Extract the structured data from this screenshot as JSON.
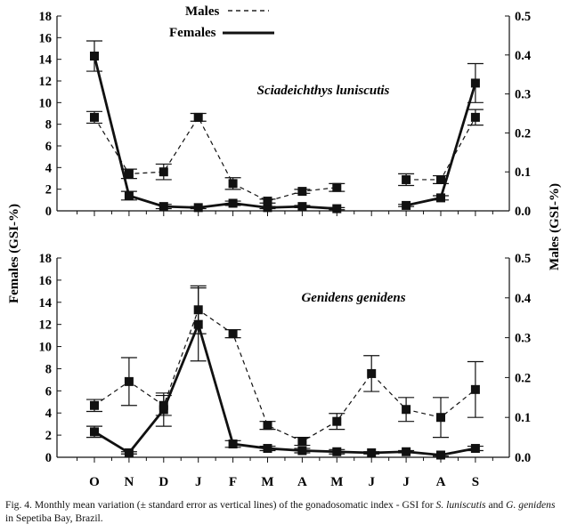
{
  "legend": {
    "males": "Males",
    "females": "Females"
  },
  "axis_labels": {
    "left": "Females (GSI-%)",
    "right": "Males (GSI-%)"
  },
  "months": [
    "O",
    "N",
    "D",
    "J",
    "F",
    "M",
    "A",
    "M",
    "J",
    "J",
    "A",
    "S"
  ],
  "caption": {
    "p1": "Fig. 4. Monthly mean variation (± standard error as vertical lines) of the gonadosomatic index - GSI for ",
    "sp1": "S. luniscutis",
    "p2": " and ",
    "sp2": "G. genidens",
    "p3": " in Sepetiba Bay, Brazil."
  },
  "chart_data": [
    {
      "type": "line",
      "title": "Sciadeichthys luniscutis",
      "categories": [
        "O",
        "N",
        "D",
        "J",
        "F",
        "M",
        "A",
        "M",
        "J",
        "J",
        "A",
        "S"
      ],
      "left_ticks": [
        0,
        2,
        4,
        6,
        8,
        10,
        12,
        14,
        16,
        18
      ],
      "right_ticks": [
        "0.0",
        "0.1",
        "0.2",
        "0.3",
        "0.4",
        "0.5"
      ],
      "left_ylim": [
        0,
        18
      ],
      "right_ylim": [
        0,
        0.5
      ],
      "series": [
        {
          "name": "Females",
          "axis": "left",
          "style": "solid",
          "values": [
            14.3,
            1.4,
            0.4,
            0.3,
            0.7,
            0.3,
            0.4,
            0.2,
            null,
            0.5,
            1.2,
            11.8
          ],
          "errors": [
            1.4,
            0.4,
            0.2,
            0.1,
            0.2,
            0.1,
            0.1,
            0.1,
            null,
            0.1,
            0.2,
            1.8
          ]
        },
        {
          "name": "Males",
          "axis": "right",
          "style": "dashed",
          "values": [
            0.24,
            0.095,
            0.1,
            0.24,
            0.07,
            0.025,
            0.05,
            0.06,
            null,
            0.08,
            0.08,
            0.24
          ],
          "errors": [
            0.015,
            0.012,
            0.02,
            0.01,
            0.015,
            0.005,
            0.005,
            0.01,
            null,
            0.015,
            0.01,
            0.02
          ]
        }
      ]
    },
    {
      "type": "line",
      "title": "Genidens genidens",
      "categories": [
        "O",
        "N",
        "D",
        "J",
        "F",
        "M",
        "A",
        "M",
        "J",
        "J",
        "A",
        "S"
      ],
      "left_ticks": [
        0,
        2,
        4,
        6,
        8,
        10,
        12,
        14,
        16,
        18
      ],
      "right_ticks": [
        "0.0",
        "0.1",
        "0.2",
        "0.3",
        "0.4",
        "0.5"
      ],
      "left_ylim": [
        0,
        18
      ],
      "right_ylim": [
        0,
        0.5
      ],
      "series": [
        {
          "name": "Females",
          "axis": "left",
          "style": "solid",
          "values": [
            2.3,
            0.4,
            4.3,
            12.0,
            1.2,
            0.8,
            0.6,
            0.5,
            0.4,
            0.5,
            0.2,
            0.8
          ],
          "errors": [
            0.5,
            0.1,
            1.5,
            3.3,
            0.3,
            0.2,
            0.2,
            0.2,
            0.1,
            0.1,
            0.1,
            0.2
          ]
        },
        {
          "name": "Males",
          "axis": "right",
          "style": "dashed",
          "values": [
            0.13,
            0.19,
            0.13,
            0.37,
            0.31,
            0.08,
            0.04,
            0.09,
            0.21,
            0.12,
            0.1,
            0.17
          ],
          "errors": [
            0.015,
            0.06,
            0.025,
            0.06,
            0.01,
            0.01,
            0.01,
            0.02,
            0.045,
            0.03,
            0.05,
            0.07
          ]
        }
      ]
    }
  ]
}
